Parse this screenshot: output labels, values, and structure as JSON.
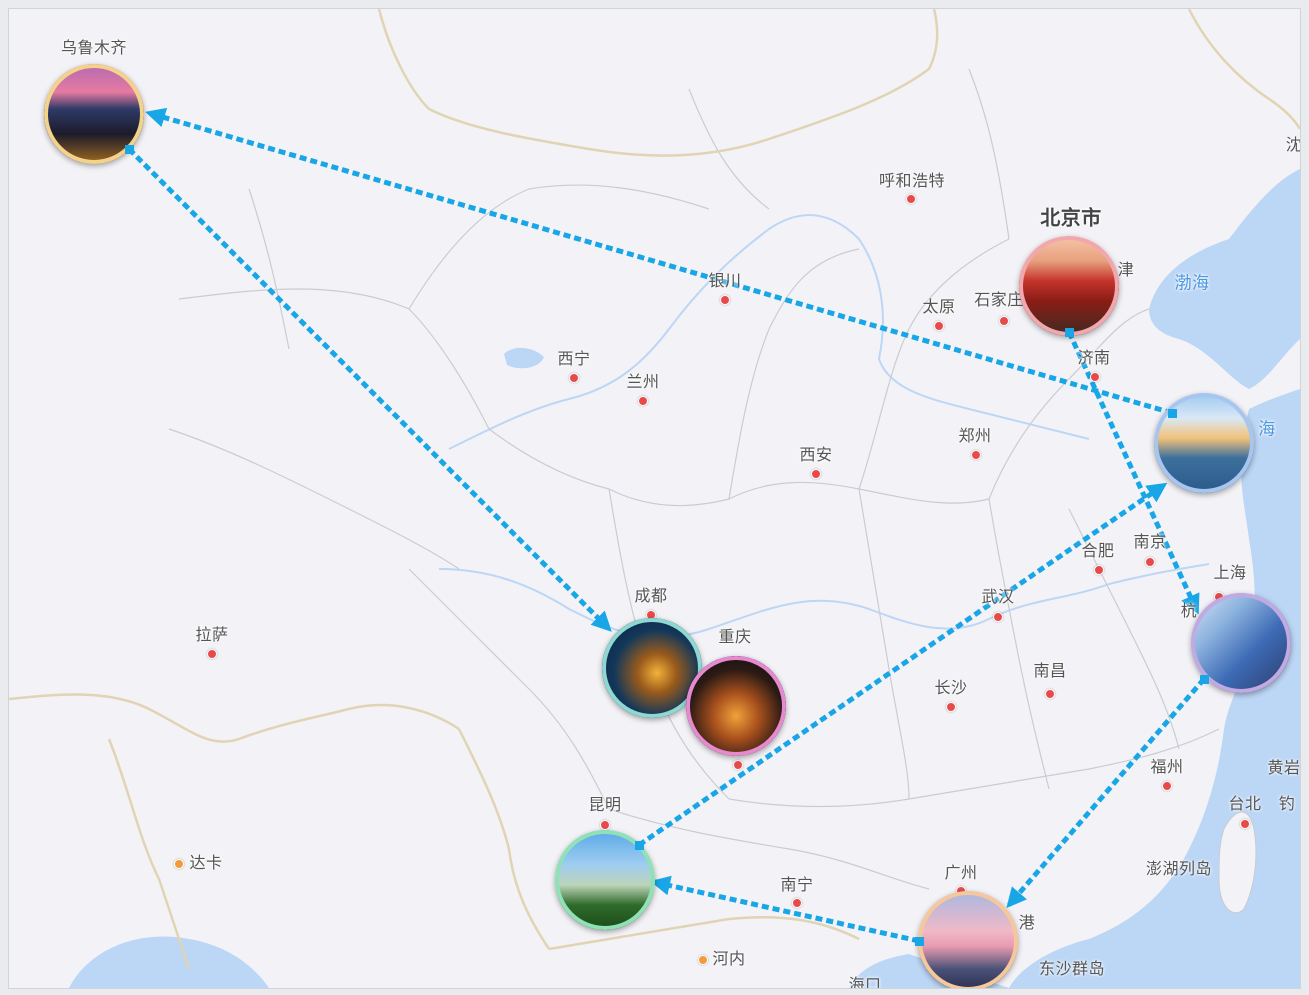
{
  "map": {
    "labels": {
      "urumqi": "乌鲁木齐",
      "hohhot": "呼和浩特",
      "beijing": "北京市",
      "tianjin": "津",
      "bohai": "渤海",
      "yinchuan": "银川",
      "taiyuan": "太原",
      "shijiazhuang": "石家庄",
      "jinan": "济南",
      "xining": "西宁",
      "lanzhou": "兰州",
      "xian": "西安",
      "zhengzhou": "郑州",
      "yellow_sea": "海",
      "hefei": "合肥",
      "nanjing": "南京",
      "shanghai": "上海",
      "hangzhou": "杭",
      "wuhan": "武汉",
      "chengdu": "成都",
      "chongqing": "重庆",
      "lhasa": "拉萨",
      "changsha": "长沙",
      "nanchang": "南昌",
      "fuzhou": "福州",
      "taibei": "台北",
      "huangyan": "黄岩",
      "diaoyu": "钓",
      "penghu": "澎湖列岛",
      "kunming": "昆明",
      "nanning": "南宁",
      "guangzhou": "广州",
      "hongkong": "港",
      "dongsha": "东沙群岛",
      "dhaka": "达卡",
      "hanoi": "河内",
      "haikou": "海口",
      "shenyang": "沈"
    },
    "route_color": "#19a6e6",
    "route": [
      "乌鲁木齐",
      "成都",
      "重庆",
      "昆明",
      "上海",
      "广州",
      "上海",
      "北京市",
      "乌鲁木齐"
    ]
  }
}
